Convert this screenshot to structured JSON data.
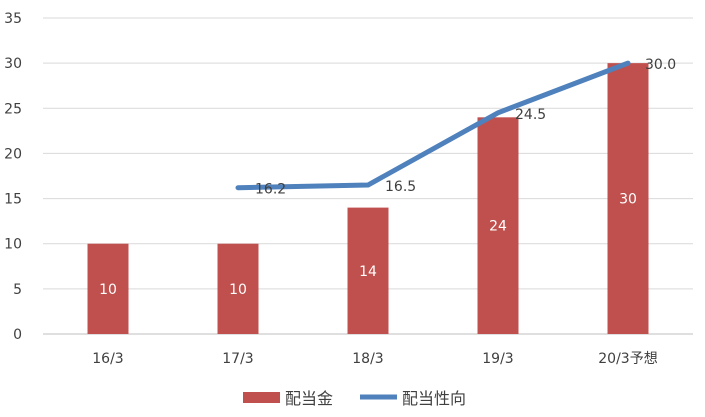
{
  "chart_data": {
    "type": "bar",
    "categories": [
      "16/3",
      "17/3",
      "18/3",
      "19/3",
      "20/3予想"
    ],
    "ylim": [
      0,
      35
    ],
    "yticks": [
      0,
      5,
      10,
      15,
      20,
      25,
      30,
      35
    ],
    "grid": true,
    "legend_position": "bottom",
    "series": [
      {
        "name": "配当金",
        "kind": "bar",
        "color": "#c0504d",
        "values": [
          10,
          10,
          14,
          24,
          30
        ],
        "labels": [
          "10",
          "10",
          "14",
          "24",
          "30"
        ]
      },
      {
        "name": "配当性向",
        "kind": "line",
        "color": "#4f81bd",
        "values": [
          null,
          16.2,
          16.5,
          24.5,
          30.0
        ],
        "labels": [
          "",
          "16.2",
          "16.5",
          "24.5",
          "30.0"
        ]
      }
    ]
  }
}
